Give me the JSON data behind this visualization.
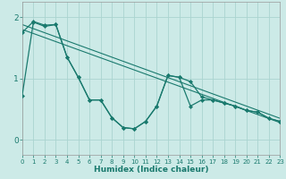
{
  "xlabel": "Humidex (Indice chaleur)",
  "bg_color": "#cceae7",
  "line_color": "#1a7a6e",
  "grid_color": "#aad4d0",
  "x_ticks": [
    0,
    1,
    2,
    3,
    4,
    5,
    6,
    7,
    8,
    9,
    10,
    11,
    12,
    13,
    14,
    15,
    16,
    17,
    18,
    19,
    20,
    21,
    22,
    23
  ],
  "y_ticks": [
    0,
    1,
    2
  ],
  "xlim": [
    0,
    23
  ],
  "ylim": [
    -0.25,
    2.25
  ],
  "wiggle1_x": [
    0,
    1,
    2,
    3,
    4,
    5,
    6,
    7,
    8,
    9,
    10,
    11,
    12,
    13,
    14,
    15,
    16,
    17,
    18,
    19,
    20,
    21,
    22,
    23
  ],
  "wiggle1_y": [
    0.72,
    1.92,
    1.85,
    1.88,
    1.35,
    1.02,
    0.65,
    0.65,
    0.36,
    0.2,
    0.18,
    0.3,
    0.55,
    1.05,
    1.02,
    0.55,
    0.65,
    0.65,
    0.6,
    0.55,
    0.48,
    0.45,
    0.35,
    0.3
  ],
  "wiggle2_x": [
    0,
    1,
    2,
    3,
    4,
    5,
    6,
    7,
    8,
    9,
    10,
    11,
    12,
    13,
    14,
    15,
    16,
    17,
    18,
    19,
    20,
    21,
    22,
    23
  ],
  "wiggle2_y": [
    1.75,
    1.93,
    1.87,
    1.88,
    1.35,
    1.02,
    0.65,
    0.65,
    0.36,
    0.2,
    0.18,
    0.3,
    0.55,
    1.05,
    1.02,
    0.95,
    0.7,
    0.65,
    0.6,
    0.55,
    0.48,
    0.45,
    0.35,
    0.3
  ],
  "trend1_x": [
    0,
    23
  ],
  "trend1_y": [
    1.8,
    0.28
  ],
  "trend2_x": [
    0,
    23
  ],
  "trend2_y": [
    1.88,
    0.35
  ]
}
